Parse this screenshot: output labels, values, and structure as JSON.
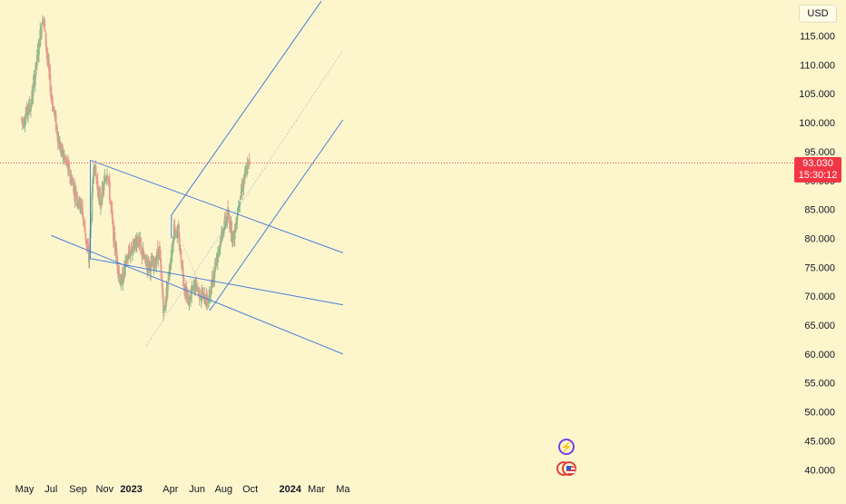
{
  "currency": {
    "label": "USD"
  },
  "price": {
    "current": "93.030",
    "countdown": "15:30:12",
    "value": 93.03
  },
  "icons": {
    "event_top": "lightning-icon",
    "event_bottom": "us-flag-icon"
  },
  "colors": {
    "background": "#fdf6cd",
    "up_candle": "#8dbb8a",
    "down_candle": "#e89a8e",
    "channel": "#4a7fd8",
    "price_line": "#f23645"
  },
  "chart_data": {
    "type": "candlestick",
    "title": "",
    "xlabel": "",
    "ylabel": "",
    "ylim": [
      38,
      121
    ],
    "y_ticks": [
      "115.000",
      "110.000",
      "105.000",
      "100.000",
      "95.000",
      "90.000",
      "85.000",
      "80.000",
      "75.000",
      "70.000",
      "65.000",
      "60.000",
      "55.000",
      "50.000",
      "45.000",
      "40.000"
    ],
    "x_ticks": [
      "May",
      "Jul",
      "Sep",
      "Nov",
      "2023",
      "Apr",
      "Jun",
      "Aug",
      "Oct",
      "2024",
      "Mar",
      "Ma"
    ],
    "bold_x_ticks": [
      "2023",
      "2024"
    ],
    "grid": false,
    "price_trend": [
      {
        "date": "2022-04-25",
        "price": 100
      },
      {
        "date": "2022-05-15",
        "price": 103
      },
      {
        "date": "2022-06-01",
        "price": 112
      },
      {
        "date": "2022-06-12",
        "price": 119
      },
      {
        "date": "2022-07-01",
        "price": 105
      },
      {
        "date": "2022-07-20",
        "price": 96
      },
      {
        "date": "2022-08-10",
        "price": 92
      },
      {
        "date": "2022-08-25",
        "price": 88
      },
      {
        "date": "2022-09-10",
        "price": 85
      },
      {
        "date": "2022-09-26",
        "price": 76
      },
      {
        "date": "2022-10-07",
        "price": 93
      },
      {
        "date": "2022-10-22",
        "price": 86
      },
      {
        "date": "2022-11-07",
        "price": 92
      },
      {
        "date": "2022-11-22",
        "price": 80
      },
      {
        "date": "2022-12-08",
        "price": 72
      },
      {
        "date": "2022-12-25",
        "price": 77
      },
      {
        "date": "2023-01-15",
        "price": 80
      },
      {
        "date": "2023-02-01",
        "price": 76
      },
      {
        "date": "2023-02-20",
        "price": 75
      },
      {
        "date": "2023-03-06",
        "price": 78
      },
      {
        "date": "2023-03-17",
        "price": 67
      },
      {
        "date": "2023-03-30",
        "price": 75
      },
      {
        "date": "2023-04-10",
        "price": 82
      },
      {
        "date": "2023-04-20",
        "price": 80
      },
      {
        "date": "2023-05-03",
        "price": 72
      },
      {
        "date": "2023-05-12",
        "price": 69
      },
      {
        "date": "2023-05-28",
        "price": 72
      },
      {
        "date": "2023-06-12",
        "price": 70
      },
      {
        "date": "2023-06-27",
        "price": 69
      },
      {
        "date": "2023-07-14",
        "price": 76
      },
      {
        "date": "2023-08-01",
        "price": 82
      },
      {
        "date": "2023-08-10",
        "price": 84
      },
      {
        "date": "2023-08-24",
        "price": 80
      },
      {
        "date": "2023-09-06",
        "price": 87
      },
      {
        "date": "2023-09-20",
        "price": 91
      },
      {
        "date": "2023-09-28",
        "price": 93
      }
    ],
    "drawings": [
      {
        "name": "descending-channel-upper",
        "points": [
          {
            "date": "2022-09-29",
            "price": 93.5
          },
          {
            "date": "2024-05-01",
            "price": 77.5
          }
        ]
      },
      {
        "name": "descending-channel-middle",
        "points": [
          {
            "date": "2022-09-29",
            "price": 76.5
          },
          {
            "date": "2024-05-01",
            "price": 68.5
          }
        ]
      },
      {
        "name": "descending-channel-lower",
        "points": [
          {
            "date": "2022-07-01",
            "price": 80.5
          },
          {
            "date": "2024-05-01",
            "price": 60.0
          }
        ]
      },
      {
        "name": "pitchfork-upper",
        "points": [
          {
            "date": "2023-04-03",
            "price": 84
          },
          {
            "date": "2024-03-12",
            "price": 121
          }
        ]
      },
      {
        "name": "pitchfork-lower",
        "points": [
          {
            "date": "2023-06-30",
            "price": 67.5
          },
          {
            "date": "2024-05-01",
            "price": 100.5
          }
        ]
      },
      {
        "name": "pitchfork-median",
        "points": [
          {
            "date": "2023-02-05",
            "price": 61.5
          },
          {
            "date": "2024-05-01",
            "price": 112.5
          }
        ]
      }
    ]
  }
}
